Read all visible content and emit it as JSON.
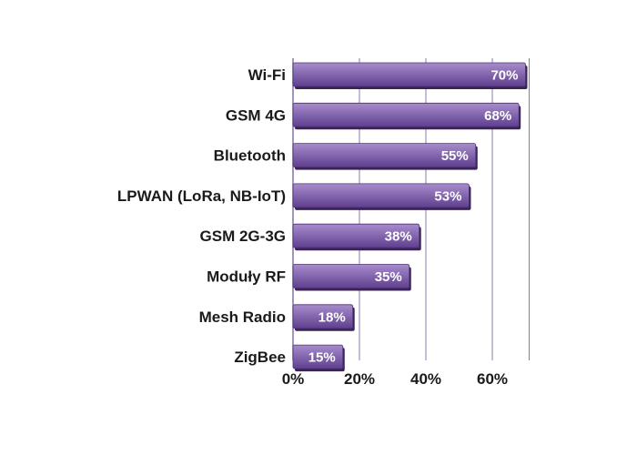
{
  "chart_data": {
    "type": "bar",
    "orientation": "horizontal",
    "categories": [
      "Wi-Fi",
      "GSM 4G",
      "Bluetooth",
      "LPWAN (LoRa, NB-IoT)",
      "GSM 2G-3G",
      "Moduły RF",
      "Mesh Radio",
      "ZigBee"
    ],
    "values": [
      70,
      68,
      55,
      53,
      38,
      35,
      18,
      15
    ],
    "value_labels": [
      "70%",
      "68%",
      "55%",
      "53%",
      "38%",
      "35%",
      "18%",
      "15%"
    ],
    "x_ticks": [
      "0%",
      "20%",
      "40%",
      "60%"
    ],
    "x_tick_values": [
      0,
      20,
      40,
      60
    ],
    "xlim": [
      0,
      70
    ],
    "grid": true,
    "title": "",
    "xlabel": "",
    "ylabel": "",
    "colors": {
      "bar_top": "#a78ccc",
      "bar_bottom": "#5f3f8f",
      "bar_shadow": "#3a2456",
      "grid": "#8a78b0"
    }
  }
}
